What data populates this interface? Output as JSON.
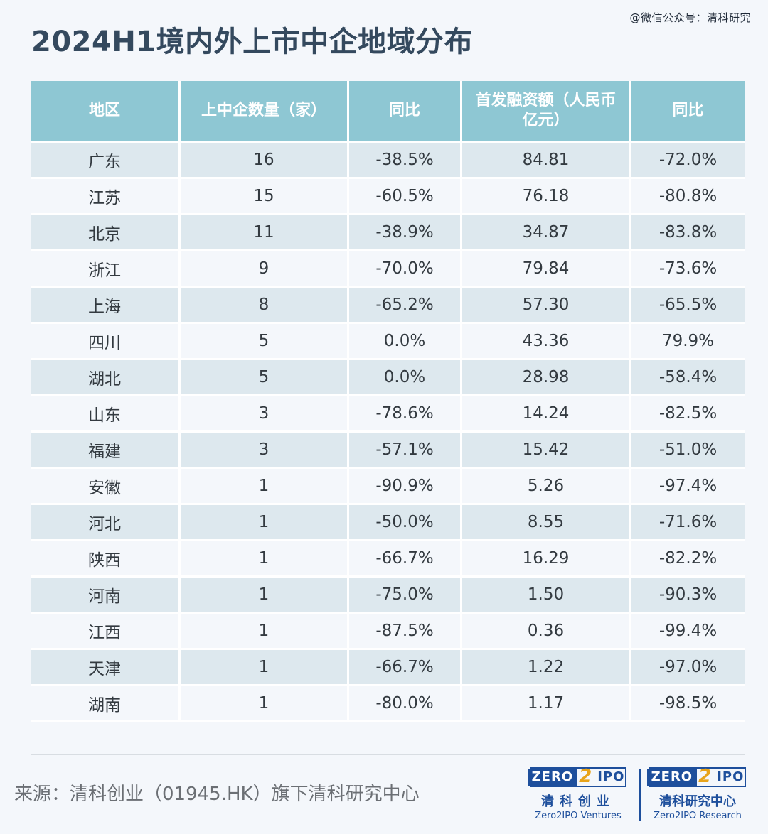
{
  "watermark": "@微信公众号：清科研究",
  "title": "2024H1境内外上市中企地域分布",
  "chart_data": {
    "type": "table",
    "columns": [
      "地区",
      "上中企数量（家）",
      "同比",
      "首发融资额（人民币亿元）",
      "同比"
    ],
    "rows": [
      [
        "广东",
        "16",
        "-38.5%",
        "84.81",
        "-72.0%"
      ],
      [
        "江苏",
        "15",
        "-60.5%",
        "76.18",
        "-80.8%"
      ],
      [
        "北京",
        "11",
        "-38.9%",
        "34.87",
        "-83.8%"
      ],
      [
        "浙江",
        "9",
        "-70.0%",
        "79.84",
        "-73.6%"
      ],
      [
        "上海",
        "8",
        "-65.2%",
        "57.30",
        "-65.5%"
      ],
      [
        "四川",
        "5",
        "0.0%",
        "43.36",
        "79.9%"
      ],
      [
        "湖北",
        "5",
        "0.0%",
        "28.98",
        "-58.4%"
      ],
      [
        "山东",
        "3",
        "-78.6%",
        "14.24",
        "-82.5%"
      ],
      [
        "福建",
        "3",
        "-57.1%",
        "15.42",
        "-51.0%"
      ],
      [
        "安徽",
        "1",
        "-90.9%",
        "5.26",
        "-97.4%"
      ],
      [
        "河北",
        "1",
        "-50.0%",
        "8.55",
        "-71.6%"
      ],
      [
        "陕西",
        "1",
        "-66.7%",
        "16.29",
        "-82.2%"
      ],
      [
        "河南",
        "1",
        "-75.0%",
        "1.50",
        "-90.3%"
      ],
      [
        "江西",
        "1",
        "-87.5%",
        "0.36",
        "-99.4%"
      ],
      [
        "天津",
        "1",
        "-66.7%",
        "1.22",
        "-97.0%"
      ],
      [
        "湖南",
        "1",
        "-80.0%",
        "1.17",
        "-98.5%"
      ]
    ]
  },
  "source": "来源：清科创业（01945.HK）旗下清科研究中心",
  "logos": [
    {
      "zero": "ZERO",
      "two": "2",
      "ipo": "IPO",
      "cn": "清科创业",
      "en": "Zero2IPO Ventures"
    },
    {
      "zero": "ZERO",
      "two": "2",
      "ipo": "IPO",
      "cn": "清科研究中心",
      "en": "Zero2IPO Research"
    }
  ],
  "colors": {
    "header_bg": "#8ec7d3",
    "row_shaded": "#dde8ee",
    "row_plain": "#f4f7fb",
    "title": "#34495e",
    "brand": "#1e4f9c",
    "brand_accent": "#e8a41a"
  }
}
